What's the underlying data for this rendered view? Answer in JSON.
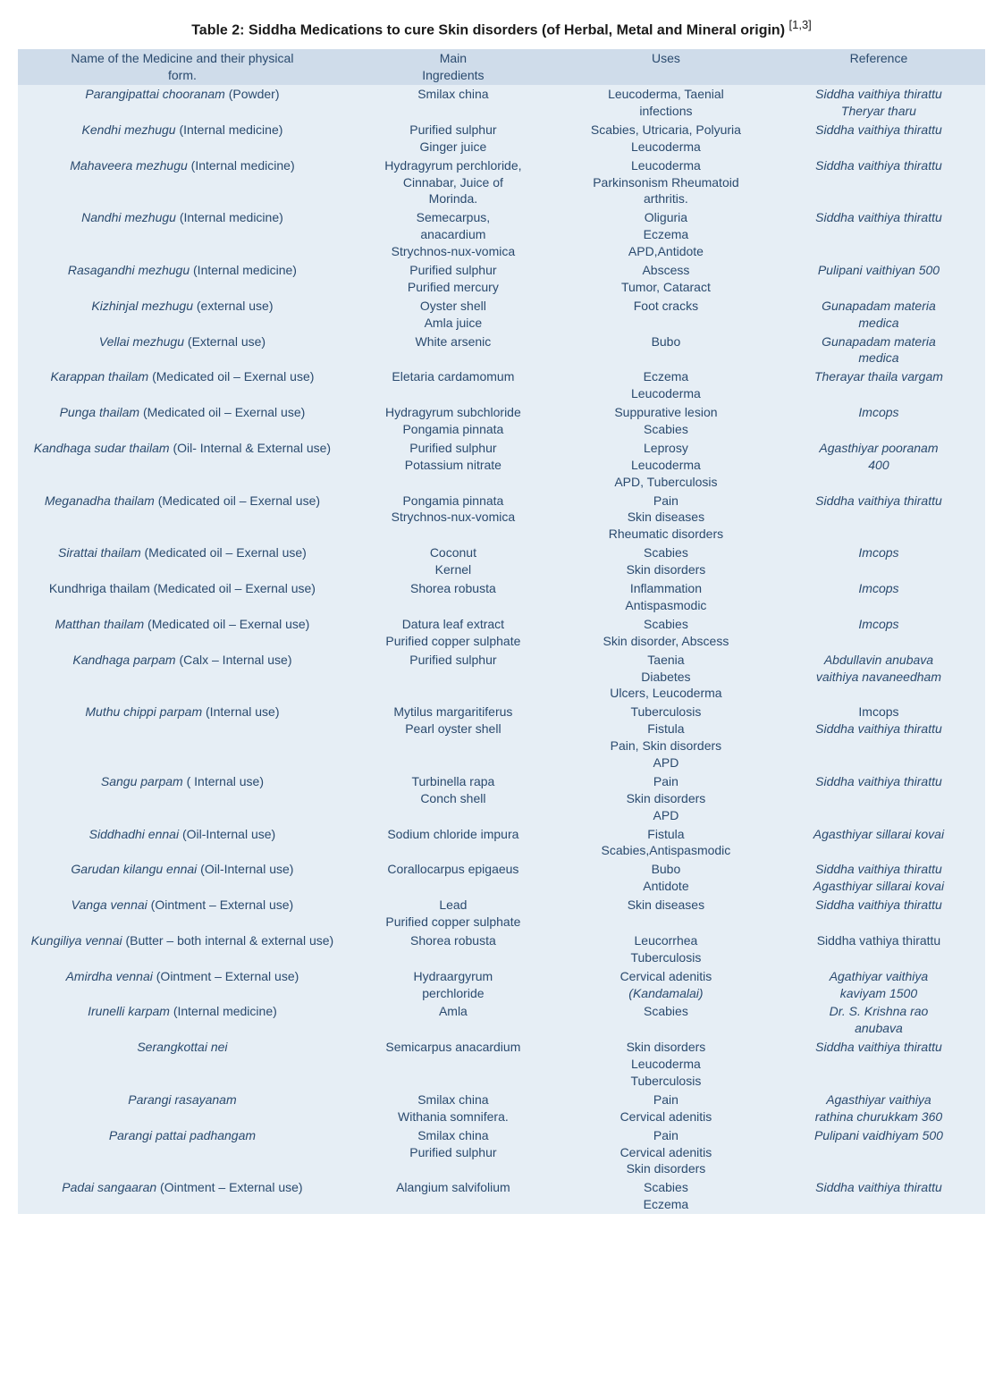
{
  "title_main": "Table 2: Siddha Medications to cure Skin disorders (of Herbal, Metal and Mineral origin)",
  "title_cite": "[1,3]",
  "colors": {
    "header_bg": "#cfdcea",
    "body_bg": "#e6eef5",
    "text": "#2a4a6e",
    "title_text": "#1a1a1a"
  },
  "headers": {
    "col1_line1": "Name of the Medicine and their physical",
    "col1_line2": "form.",
    "col2_line1": "Main",
    "col2_line2": "Ingredients",
    "col3": "Uses",
    "col4": "Reference"
  },
  "rows": [
    {
      "name_italic": "Parangipattai chooranam",
      "name_plain": " (Powder)",
      "ingredients": [
        "Smilax china"
      ],
      "uses": [
        "Leucoderma, Taenial",
        "infections"
      ],
      "reference": [
        "Siddha vaithiya thirattu",
        "Theryar tharu"
      ],
      "ref_italic": true
    },
    {
      "name_italic": "Kendhi mezhugu",
      "name_plain": " (Internal medicine)",
      "ingredients": [
        "Purified sulphur",
        "Ginger juice"
      ],
      "uses": [
        "Scabies, Utricaria, Polyuria",
        "Leucoderma"
      ],
      "reference": [
        "Siddha vaithiya thirattu"
      ],
      "ref_italic": true
    },
    {
      "name_italic": "Mahaveera mezhugu",
      "name_plain": " (Internal medicine)",
      "ingredients": [
        "Hydragyrum perchloride,",
        "Cinnabar, Juice of",
        "Morinda."
      ],
      "uses": [
        "Leucoderma",
        "Parkinsonism Rheumatoid",
        "arthritis."
      ],
      "reference": [
        "Siddha vaithiya thirattu"
      ],
      "ref_italic": true
    },
    {
      "name_italic": "Nandhi mezhugu",
      "name_plain": " (Internal medicine)",
      "ingredients": [
        "Semecarpus,",
        "anacardium",
        "Strychnos-nux-vomica"
      ],
      "uses": [
        "Oliguria",
        "Eczema",
        "APD,Antidote"
      ],
      "reference": [
        "Siddha vaithiya thirattu"
      ],
      "ref_italic": true
    },
    {
      "name_italic": "Rasagandhi mezhugu",
      "name_plain": " (Internal medicine)",
      "ingredients": [
        "Purified sulphur",
        "Purified mercury"
      ],
      "uses": [
        "Abscess",
        "Tumor, Cataract"
      ],
      "reference": [
        "Pulipani vaithiyan 500"
      ],
      "ref_italic": true
    },
    {
      "name_italic": "Kizhinjal mezhugu",
      "name_plain": " (external use)",
      "ingredients": [
        "Oyster shell",
        "Amla juice"
      ],
      "uses": [
        "Foot cracks"
      ],
      "reference": [
        "Gunapadam materia",
        "medica"
      ],
      "ref_italic": true
    },
    {
      "name_italic": "Vellai mezhugu",
      "name_plain": " (External use)",
      "ingredients": [
        "White arsenic"
      ],
      "uses": [
        "Bubo"
      ],
      "reference": [
        "Gunapadam materia",
        "medica"
      ],
      "ref_italic": true
    },
    {
      "name_italic": "Karappan thailam",
      "name_plain": " (Medicated oil – Exernal use)",
      "name_wrap": true,
      "ingredients": [
        "Eletaria cardamomum"
      ],
      "uses": [
        "Eczema",
        "Leucoderma"
      ],
      "reference": [
        "Therayar thaila vargam"
      ],
      "ref_italic": true
    },
    {
      "name_italic": "Punga thailam",
      "name_plain": " (Medicated oil – Exernal use)",
      "ingredients": [
        "Hydragyrum subchloride",
        "Pongamia pinnata"
      ],
      "uses": [
        "Suppurative lesion",
        "Scabies"
      ],
      "reference": [
        "Imcops"
      ],
      "ref_italic": true
    },
    {
      "name_italic": "Kandhaga sudar thailam",
      "name_plain": " (Oil- Internal & External use)",
      "name_wrap": true,
      "ingredients": [
        "Purified sulphur",
        "Potassium nitrate"
      ],
      "uses": [
        "Leprosy",
        "Leucoderma",
        "APD, Tuberculosis"
      ],
      "reference": [
        "Agasthiyar pooranam",
        "400"
      ],
      "ref_italic": true
    },
    {
      "name_italic": "Meganadha thailam",
      "name_plain": " (Medicated oil – Exernal use)",
      "name_wrap": true,
      "ingredients": [
        "Pongamia pinnata",
        "Strychnos-nux-vomica"
      ],
      "uses": [
        "Pain",
        "Skin diseases",
        "Rheumatic disorders"
      ],
      "reference": [
        "Siddha vaithiya thirattu"
      ],
      "ref_italic": true
    },
    {
      "name_italic": "Sirattai thailam",
      "name_plain": " (Medicated oil – Exernal use)",
      "ingredients": [
        "Coconut",
        "Kernel"
      ],
      "uses": [
        "Scabies",
        "Skin disorders"
      ],
      "reference": [
        "Imcops"
      ],
      "ref_italic": true
    },
    {
      "name_italic": "",
      "name_plain": "Kundhriga thailam (Medicated oil – Exernal use)",
      "name_wrap": true,
      "ingredients": [
        "Shorea robusta"
      ],
      "uses": [
        "Inflammation",
        "Antispasmodic"
      ],
      "reference": [
        "Imcops"
      ],
      "ref_italic": true
    },
    {
      "name_italic": "Matthan thailam",
      "name_plain": " (Medicated oil – Exernal use)",
      "name_wrap": true,
      "ingredients": [
        "Datura leaf extract",
        "Purified copper sulphate"
      ],
      "uses": [
        "Scabies",
        "Skin disorder, Abscess"
      ],
      "reference": [
        "Imcops"
      ],
      "ref_italic": true
    },
    {
      "name_italic": "Kandhaga parpam",
      "name_plain": " (Calx – Internal use)",
      "ingredients": [
        "Purified sulphur"
      ],
      "uses": [
        "Taenia",
        "Diabetes",
        "Ulcers, Leucoderma"
      ],
      "reference": [
        "Abdullavin anubava",
        "vaithiya navaneedham"
      ],
      "ref_italic": true
    },
    {
      "name_italic": "Muthu chippi parpam",
      "name_plain": " (Internal use)",
      "ingredients": [
        "Mytilus margaritiferus",
        "Pearl oyster shell"
      ],
      "uses": [
        "Tuberculosis",
        "Fistula",
        "Pain, Skin disorders",
        "APD"
      ],
      "reference": [
        "Imcops",
        "Siddha vaithiya thirattu"
      ],
      "ref_mixed": true
    },
    {
      "name_italic": "Sangu parpam",
      "name_plain": " ( Internal use)",
      "ingredients": [
        "Turbinella rapa",
        "Conch shell"
      ],
      "uses": [
        "Pain",
        "Skin disorders",
        "APD"
      ],
      "reference": [
        "Siddha vaithiya thirattu"
      ],
      "ref_italic": true
    },
    {
      "name_italic": "Siddhadhi ennai",
      "name_plain": " (Oil-Internal use)",
      "ingredients": [
        "Sodium chloride impura"
      ],
      "uses": [
        "Fistula",
        "Scabies,Antispasmodic"
      ],
      "reference": [
        "Agasthiyar sillarai kovai"
      ],
      "ref_italic": true
    },
    {
      "name_italic": "Garudan kilangu ennai",
      "name_plain": " (Oil-Internal use)",
      "ingredients": [
        "Corallocarpus epigaeus"
      ],
      "uses": [
        "Bubo",
        "Antidote"
      ],
      "reference": [
        "Siddha vaithiya thirattu",
        "Agasthiyar sillarai kovai"
      ],
      "ref_italic": true
    },
    {
      "name_italic": "Vanga vennai",
      "name_plain": " (Ointment – External use)",
      "ingredients": [
        "Lead",
        "Purified copper sulphate"
      ],
      "uses": [
        "Skin diseases"
      ],
      "reference": [
        "Siddha vaithiya thirattu"
      ],
      "ref_italic": true
    },
    {
      "name_italic": "Kungiliya vennai",
      "name_plain": " (Butter – both internal & external use)",
      "name_wrap": true,
      "ingredients": [
        "Shorea robusta"
      ],
      "uses": [
        "Leucorrhea",
        "Tuberculosis"
      ],
      "reference": [
        "Siddha vathiya thirattu"
      ],
      "ref_italic": false
    },
    {
      "name_italic": "Amirdha vennai",
      "name_plain": " (Ointment – External use)",
      "ingredients": [
        "Hydraargyrum",
        "perchloride"
      ],
      "uses": [
        "Cervical adenitis",
        "(Kandamalai)"
      ],
      "uses_italic_idx": 1,
      "reference": [
        "Agathiyar vaithiya",
        "kaviyam 1500"
      ],
      "ref_italic": true
    },
    {
      "name_italic": "Irunelli karpam",
      "name_plain": " (Internal medicine)",
      "ingredients": [
        "Amla"
      ],
      "uses": [
        "Scabies"
      ],
      "reference": [
        "Dr. S. Krishna rao",
        "anubava"
      ],
      "ref_italic": true
    },
    {
      "name_italic": "Serangkottai nei",
      "name_plain": "",
      "ingredients": [
        "Semicarpus anacardium"
      ],
      "uses": [
        "Skin disorders",
        "Leucoderma",
        "Tuberculosis"
      ],
      "reference": [
        "Siddha vaithiya thirattu"
      ],
      "ref_italic": true
    },
    {
      "name_italic": "Parangi rasayanam",
      "name_plain": "",
      "ingredients": [
        "Smilax china",
        "Withania somnifera."
      ],
      "uses": [
        "Pain",
        "Cervical adenitis"
      ],
      "reference": [
        "Agasthiyar vaithiya",
        "rathina churukkam 360"
      ],
      "ref_italic": true
    },
    {
      "name_italic": "Parangi pattai padhangam",
      "name_plain": "",
      "ingredients": [
        "Smilax china",
        "Purified sulphur"
      ],
      "uses": [
        "Pain",
        "Cervical adenitis",
        "Skin disorders"
      ],
      "reference": [
        "Pulipani vaidhiyam 500"
      ],
      "ref_italic": true
    },
    {
      "name_italic": "Padai sangaaran",
      "name_plain": " (Ointment – External use)",
      "ingredients": [
        "Alangium salvifolium"
      ],
      "uses": [
        "Scabies",
        "Eczema"
      ],
      "reference": [
        "Siddha vaithiya thirattu"
      ],
      "ref_italic": true
    }
  ]
}
